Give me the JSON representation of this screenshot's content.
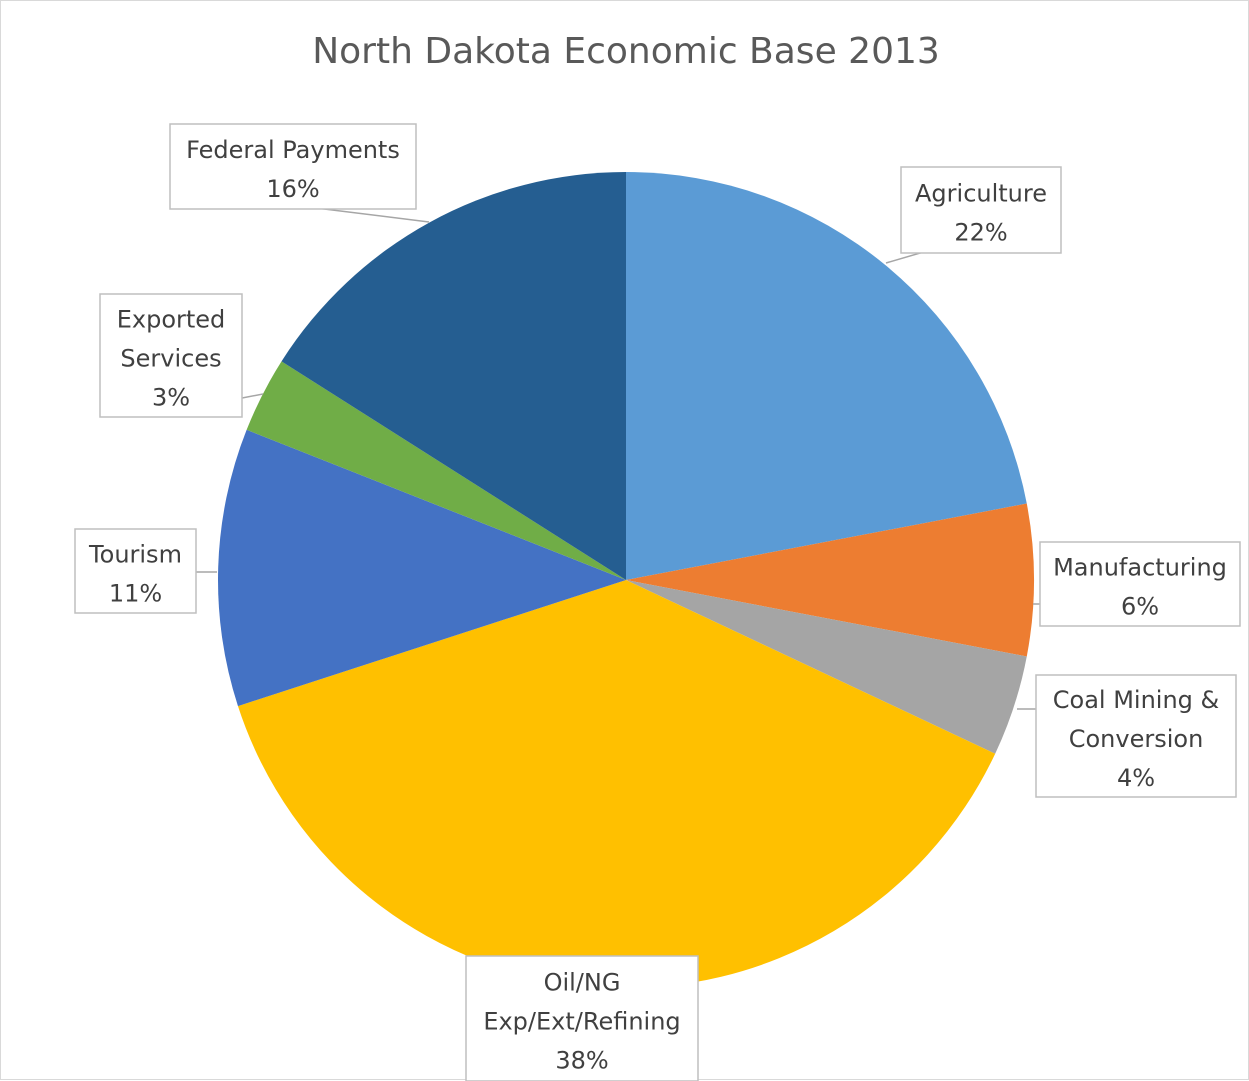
{
  "chart_data": {
    "type": "pie",
    "title": "North Dakota Economic Base 2013",
    "start_angle_deg": 0,
    "direction": "clockwise",
    "slices": [
      {
        "label_lines": [
          "Agriculture"
        ],
        "value": 22,
        "value_label": "22%",
        "color": "#5b9bd5"
      },
      {
        "label_lines": [
          "Manufacturing"
        ],
        "value": 6,
        "value_label": "6%",
        "color": "#ed7d31"
      },
      {
        "label_lines": [
          "Coal Mining &",
          "Conversion"
        ],
        "value": 4,
        "value_label": "4%",
        "color": "#a5a5a5"
      },
      {
        "label_lines": [
          "Oil/NG",
          "Exp/Ext/Refining"
        ],
        "value": 38,
        "value_label": "38%",
        "color": "#ffc000"
      },
      {
        "label_lines": [
          "Tourism"
        ],
        "value": 11,
        "value_label": "11%",
        "color": "#4472c4"
      },
      {
        "label_lines": [
          "Exported",
          "Services"
        ],
        "value": 3,
        "value_label": "3%",
        "color": "#70ad47"
      },
      {
        "label_lines": [
          "Federal Payments"
        ],
        "value": 16,
        "value_label": "16%",
        "color": "#255e91"
      }
    ],
    "legend": "none",
    "data_labels": "callouts"
  }
}
